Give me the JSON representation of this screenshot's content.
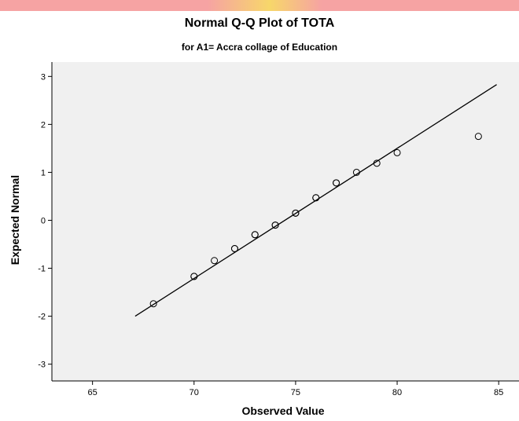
{
  "chart_data": {
    "type": "scatter",
    "title": "Normal Q-Q Plot of TOTA",
    "subtitle": "for A1= Accra collage of Education",
    "xlabel": "Observed Value",
    "ylabel": "Expected Normal",
    "xlim": [
      63,
      86
    ],
    "ylim": [
      -3.35,
      3.3
    ],
    "x_ticks": [
      65,
      70,
      75,
      80,
      85
    ],
    "y_ticks": [
      -3,
      -2,
      -1,
      0,
      1,
      2,
      3
    ],
    "grid": false,
    "points": [
      {
        "x": 68,
        "y": -1.74
      },
      {
        "x": 70,
        "y": -1.17
      },
      {
        "x": 70,
        "y": -1.17
      },
      {
        "x": 71,
        "y": -0.84
      },
      {
        "x": 72,
        "y": -0.59
      },
      {
        "x": 72,
        "y": -0.59
      },
      {
        "x": 73,
        "y": -0.3
      },
      {
        "x": 73,
        "y": -0.3
      },
      {
        "x": 74,
        "y": -0.1
      },
      {
        "x": 74,
        "y": -0.1
      },
      {
        "x": 75,
        "y": 0.15
      },
      {
        "x": 75,
        "y": 0.15
      },
      {
        "x": 76,
        "y": 0.47
      },
      {
        "x": 76,
        "y": 0.47
      },
      {
        "x": 77,
        "y": 0.78
      },
      {
        "x": 77,
        "y": 0.78
      },
      {
        "x": 78,
        "y": 1.0
      },
      {
        "x": 79,
        "y": 1.19
      },
      {
        "x": 80,
        "y": 1.41
      },
      {
        "x": 84,
        "y": 1.75
      }
    ],
    "reference_line": {
      "x": [
        67.1,
        84.9
      ],
      "y": [
        -2.0,
        2.83
      ]
    },
    "colors": {
      "plot_background": "#f0f0f0",
      "marker": "#000000",
      "line": "#000000",
      "top_band": "#f6a3a3",
      "top_band_highlight": "#f7d76a"
    }
  }
}
